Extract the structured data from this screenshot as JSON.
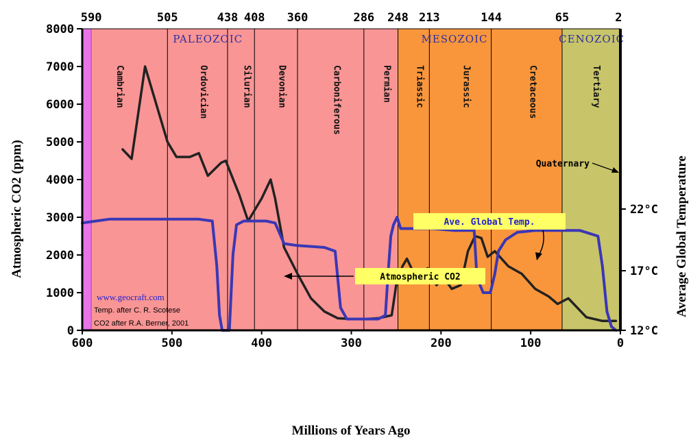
{
  "chart_data": {
    "type": "line",
    "x": {
      "label": "Millions of Years Ago",
      "range": [
        600,
        0
      ],
      "ticks": [
        "600",
        "500",
        "400",
        "300",
        "200",
        "100",
        "0"
      ],
      "top_ticks": [
        "590",
        "505",
        "438",
        "408",
        "360",
        "286",
        "248",
        "213",
        "144",
        "65",
        "2"
      ]
    },
    "y_left": {
      "label": "Atmospheric CO2 (ppm)",
      "range": [
        0,
        8000
      ],
      "ticks": [
        "0",
        "1000",
        "2000",
        "3000",
        "4000",
        "5000",
        "6000",
        "7000",
        "8000"
      ]
    },
    "y_right": {
      "label": "Average Global Temperature",
      "ticks": [
        "12°C",
        "17°C",
        "22°C"
      ]
    },
    "eras": [
      {
        "name": "PALEOZOIC",
        "start": 590,
        "end": 248,
        "color": "#f99595"
      },
      {
        "name": "MESOZOIC",
        "start": 248,
        "end": 65,
        "color": "#f9963c"
      },
      {
        "name": "CENOZOIC",
        "start": 65,
        "end": 0,
        "color": "#c8c46a"
      }
    ],
    "pre_band": {
      "start": 600,
      "end": 590,
      "color": "#e875e8"
    },
    "boundaries": [
      505,
      438,
      408,
      360,
      286,
      248,
      213,
      144,
      65
    ],
    "periods": [
      {
        "name": "Cambrian",
        "start": 590,
        "end": 505
      },
      {
        "name": "Ordovician",
        "start": 505,
        "end": 438
      },
      {
        "name": "Silurian",
        "start": 438,
        "end": 408
      },
      {
        "name": "Devonian",
        "start": 408,
        "end": 360
      },
      {
        "name": "Carboniferous",
        "start": 360,
        "end": 286
      },
      {
        "name": "Permian",
        "start": 286,
        "end": 248
      },
      {
        "name": "Triassic",
        "start": 248,
        "end": 213
      },
      {
        "name": "Jurassic",
        "start": 213,
        "end": 144
      },
      {
        "name": "Cretaceous",
        "start": 144,
        "end": 65
      },
      {
        "name": "Tertiary",
        "start": 65,
        "end": 2
      }
    ],
    "series": [
      {
        "name": "Atmospheric CO2",
        "color": "#222222",
        "points": [
          [
            555,
            4800
          ],
          [
            545,
            4550
          ],
          [
            530,
            7000
          ],
          [
            520,
            6200
          ],
          [
            505,
            5000
          ],
          [
            495,
            4600
          ],
          [
            480,
            4600
          ],
          [
            470,
            4700
          ],
          [
            460,
            4100
          ],
          [
            445,
            4450
          ],
          [
            440,
            4500
          ],
          [
            425,
            3600
          ],
          [
            415,
            2900
          ],
          [
            400,
            3500
          ],
          [
            390,
            4000
          ],
          [
            385,
            3500
          ],
          [
            375,
            2200
          ],
          [
            360,
            1500
          ],
          [
            345,
            850
          ],
          [
            330,
            500
          ],
          [
            315,
            320
          ],
          [
            300,
            300
          ],
          [
            285,
            300
          ],
          [
            270,
            320
          ],
          [
            255,
            400
          ],
          [
            250,
            1200
          ],
          [
            243,
            1700
          ],
          [
            238,
            1900
          ],
          [
            230,
            1500
          ],
          [
            222,
            1300
          ],
          [
            215,
            1650
          ],
          [
            205,
            1200
          ],
          [
            197,
            1400
          ],
          [
            188,
            1100
          ],
          [
            178,
            1200
          ],
          [
            170,
            2100
          ],
          [
            162,
            2500
          ],
          [
            155,
            2450
          ],
          [
            148,
            1950
          ],
          [
            140,
            2100
          ],
          [
            125,
            1700
          ],
          [
            110,
            1500
          ],
          [
            95,
            1100
          ],
          [
            80,
            900
          ],
          [
            70,
            700
          ],
          [
            58,
            850
          ],
          [
            50,
            650
          ],
          [
            38,
            350
          ],
          [
            20,
            250
          ],
          [
            5,
            250
          ]
        ]
      },
      {
        "name": "Ave. Global Temp.",
        "color": "#3a37b5",
        "points": [
          [
            600,
            2850
          ],
          [
            570,
            2950
          ],
          [
            540,
            2950
          ],
          [
            500,
            2950
          ],
          [
            470,
            2950
          ],
          [
            455,
            2900
          ],
          [
            450,
            1700
          ],
          [
            447,
            400
          ],
          [
            444,
            0
          ],
          [
            440,
            0
          ],
          [
            436,
            0
          ],
          [
            432,
            2000
          ],
          [
            428,
            2800
          ],
          [
            420,
            2900
          ],
          [
            395,
            2900
          ],
          [
            385,
            2850
          ],
          [
            375,
            2300
          ],
          [
            360,
            2250
          ],
          [
            330,
            2200
          ],
          [
            318,
            2100
          ],
          [
            312,
            600
          ],
          [
            305,
            300
          ],
          [
            295,
            300
          ],
          [
            270,
            300
          ],
          [
            262,
            400
          ],
          [
            259,
            1500
          ],
          [
            256,
            2500
          ],
          [
            253,
            2800
          ],
          [
            249,
            3000
          ],
          [
            245,
            2700
          ],
          [
            235,
            2700
          ],
          [
            210,
            2700
          ],
          [
            185,
            2650
          ],
          [
            163,
            2650
          ],
          [
            160,
            1400
          ],
          [
            153,
            1000
          ],
          [
            145,
            1000
          ],
          [
            140,
            1500
          ],
          [
            136,
            2100
          ],
          [
            128,
            2400
          ],
          [
            115,
            2600
          ],
          [
            95,
            2650
          ],
          [
            70,
            2650
          ],
          [
            45,
            2650
          ],
          [
            25,
            2500
          ],
          [
            20,
            1700
          ],
          [
            15,
            500
          ],
          [
            10,
            100
          ],
          [
            5,
            0
          ]
        ]
      }
    ],
    "annotations": {
      "co2_label": "Atmospheric CO2",
      "temp_label": "Ave. Global Temp.",
      "quaternary": "Quaternary",
      "site": "www.geocraft.com",
      "credit1": "Temp. after C. R. Scotese",
      "credit2": "CO2 after R.A. Berner, 2001"
    }
  }
}
